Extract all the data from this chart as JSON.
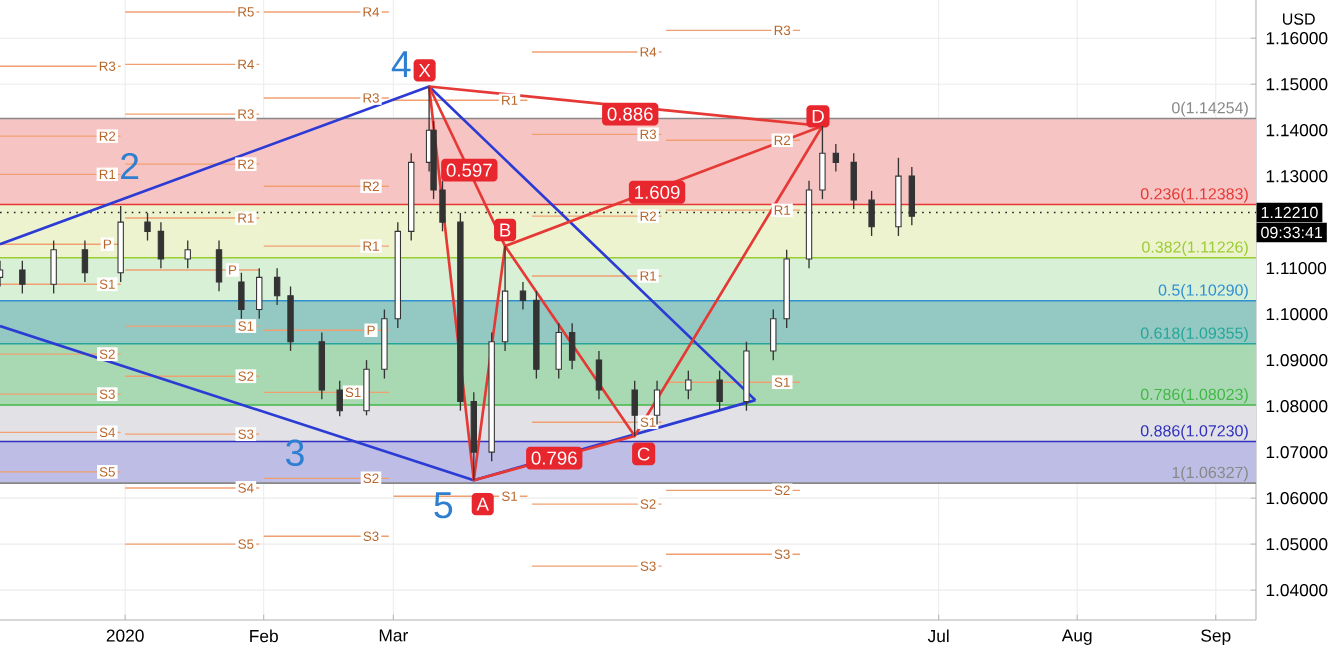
{
  "chart_data": {
    "type": "candlestick",
    "color": "#333333",
    "ylabel": "USD",
    "grid": true,
    "xlim": [
      "2019-12-04",
      "2020-09-10"
    ],
    "ylim": [
      1.0335,
      1.1683
    ],
    "xticks": [
      {
        "value": "2020-01-01",
        "label": "2020"
      },
      {
        "value": "2020-02-01",
        "label": "Feb"
      },
      {
        "value": "2020-03-01",
        "label": "Mar"
      },
      {
        "value": "2020-07-01",
        "label": "Jul"
      },
      {
        "value": "2020-08-01",
        "label": "Aug"
      },
      {
        "value": "2020-09-01",
        "label": "Sep"
      }
    ],
    "yticks": [
      {
        "value": 1.04,
        "label": "1.04000"
      },
      {
        "value": 1.05,
        "label": "1.05000"
      },
      {
        "value": 1.06,
        "label": "1.06000"
      },
      {
        "value": 1.07,
        "label": "1.07000"
      },
      {
        "value": 1.08,
        "label": "1.08000"
      },
      {
        "value": 1.09,
        "label": "1.09000"
      },
      {
        "value": 1.1,
        "label": "1.10000"
      },
      {
        "value": 1.11,
        "label": "1.11000"
      },
      {
        "value": 1.12,
        "label": null
      },
      {
        "value": 1.13,
        "label": "1.13000"
      },
      {
        "value": 1.14,
        "label": "1.14000"
      },
      {
        "value": 1.15,
        "label": "1.15000"
      },
      {
        "value": 1.16,
        "label": "1.16000"
      }
    ],
    "x": [
      "2019-12-04",
      "2019-12-09",
      "2019-12-16",
      "2019-12-23",
      "2019-12-31",
      "2020-01-06",
      "2020-01-09",
      "2020-01-15",
      "2020-01-22",
      "2020-01-27",
      "2020-01-31",
      "2020-02-04",
      "2020-02-07",
      "2020-02-14",
      "2020-02-18",
      "2020-02-24",
      "2020-02-28",
      "2020-03-02",
      "2020-03-05",
      "2020-03-09",
      "2020-03-10",
      "2020-03-12",
      "2020-03-16",
      "2020-03-19",
      "2020-03-23",
      "2020-03-26",
      "2020-03-30",
      "2020-04-02",
      "2020-04-07",
      "2020-04-10",
      "2020-04-16",
      "2020-04-24",
      "2020-04-29",
      "2020-05-06",
      "2020-05-13",
      "2020-05-19",
      "2020-05-25",
      "2020-05-28",
      "2020-06-02",
      "2020-06-05",
      "2020-06-08",
      "2020-06-12",
      "2020-06-16",
      "2020-06-22",
      "2020-06-25"
    ],
    "ohlc": [
      [
        1.108,
        1.1116,
        1.106,
        1.1096
      ],
      [
        1.1096,
        1.1116,
        1.1045,
        1.1065
      ],
      [
        1.1065,
        1.116,
        1.1045,
        1.114
      ],
      [
        1.114,
        1.116,
        1.107,
        1.109
      ],
      [
        1.109,
        1.1235,
        1.107,
        1.12
      ],
      [
        1.12,
        1.122,
        1.116,
        1.118
      ],
      [
        1.118,
        1.12,
        1.11,
        1.112
      ],
      [
        1.112,
        1.116,
        1.11,
        1.114
      ],
      [
        1.114,
        1.116,
        1.105,
        1.107
      ],
      [
        1.107,
        1.109,
        1.099,
        1.101
      ],
      [
        1.101,
        1.11,
        1.099,
        1.108
      ],
      [
        1.108,
        1.11,
        1.102,
        1.104
      ],
      [
        1.104,
        1.106,
        1.092,
        1.094
      ],
      [
        1.094,
        1.096,
        1.0815,
        1.0835
      ],
      [
        1.0835,
        1.0855,
        1.0778,
        1.079
      ],
      [
        1.079,
        1.09,
        1.078,
        1.088
      ],
      [
        1.088,
        1.101,
        1.086,
        1.099
      ],
      [
        1.099,
        1.12,
        1.097,
        1.118
      ],
      [
        1.118,
        1.135,
        1.116,
        1.133
      ],
      [
        1.133,
        1.1495,
        1.131,
        1.14
      ],
      [
        1.14,
        1.142,
        1.125,
        1.127
      ],
      [
        1.127,
        1.129,
        1.118,
        1.12
      ],
      [
        1.12,
        1.122,
        1.079,
        1.081
      ],
      [
        1.081,
        1.083,
        1.0639,
        1.07
      ],
      [
        1.07,
        1.096,
        1.068,
        1.094
      ],
      [
        1.094,
        1.1148,
        1.092,
        1.105
      ],
      [
        1.105,
        1.107,
        1.101,
        1.103
      ],
      [
        1.103,
        1.105,
        1.086,
        1.088
      ],
      [
        1.088,
        1.098,
        1.086,
        1.096
      ],
      [
        1.096,
        1.098,
        1.088,
        1.09
      ],
      [
        1.09,
        1.092,
        1.0815,
        1.0835
      ],
      [
        1.0835,
        1.0855,
        1.0735,
        1.078
      ],
      [
        1.078,
        1.0855,
        1.076,
        1.0835
      ],
      [
        1.0835,
        1.0877,
        1.0815,
        1.0857
      ],
      [
        1.0857,
        1.0877,
        1.079,
        1.081
      ],
      [
        1.081,
        1.094,
        1.079,
        1.092
      ],
      [
        1.092,
        1.101,
        1.09,
        1.099
      ],
      [
        1.099,
        1.114,
        1.097,
        1.112
      ],
      [
        1.112,
        1.129,
        1.11,
        1.127
      ],
      [
        1.127,
        1.1409,
        1.125,
        1.135
      ],
      [
        1.135,
        1.137,
        1.131,
        1.133
      ],
      [
        1.133,
        1.135,
        1.1228,
        1.1248
      ],
      [
        1.1248,
        1.1268,
        1.117,
        1.119
      ],
      [
        1.119,
        1.134,
        1.117,
        1.13
      ],
      [
        1.13,
        1.132,
        1.1193,
        1.1213
      ]
    ],
    "bands": [
      {
        "axis": "y",
        "from": 1.12383,
        "to": 1.14254,
        "color": "#f7c4c4"
      },
      {
        "axis": "y",
        "from": 1.11226,
        "to": 1.12383,
        "color": "#eef3cf"
      },
      {
        "axis": "y",
        "from": 1.1029,
        "to": 1.11226,
        "color": "#d8f0d6"
      },
      {
        "axis": "y",
        "from": 1.09355,
        "to": 1.1029,
        "color": "#93c9c2"
      },
      {
        "axis": "y",
        "from": 1.08023,
        "to": 1.09355,
        "color": "#a9d9b2"
      },
      {
        "axis": "y",
        "from": 1.0723,
        "to": 1.08023,
        "color": "#e2e2e6"
      },
      {
        "axis": "y",
        "from": 1.06327,
        "to": 1.0723,
        "color": "#bdbde6"
      }
    ],
    "ref_lines": [
      {
        "axis": "y",
        "value": 1.14254,
        "label": "0(1.14254)",
        "color": "#888888"
      },
      {
        "axis": "y",
        "value": 1.12383,
        "label": "0.236(1.12383)",
        "color": "#e53935"
      },
      {
        "axis": "y",
        "value": 1.11226,
        "label": "0.382(1.11226)",
        "color": "#9acd32"
      },
      {
        "axis": "y",
        "value": 1.1029,
        "label": "0.5(1.10290)",
        "color": "#2f8fd0"
      },
      {
        "axis": "y",
        "value": 1.09355,
        "label": "0.618(1.09355)",
        "color": "#26a69a"
      },
      {
        "axis": "y",
        "value": 1.08023,
        "label": "0.786(1.08023)",
        "color": "#43b649"
      },
      {
        "axis": "y",
        "value": 1.0723,
        "label": "0.886(1.07230)",
        "color": "#3030c0"
      },
      {
        "axis": "y",
        "value": 1.06327,
        "label": "1(1.06327)",
        "color": "#888888"
      },
      {
        "axis": "y",
        "value": 1.1221,
        "label": "1.12210",
        "color": "#222222",
        "line_style": "dotted"
      }
    ],
    "series": [
      {
        "type": "line",
        "color": "#f0a070",
        "x": [
          "2019-12-04",
          "2019-12-31"
        ],
        "values": [
          1.1539,
          1.1539
        ]
      },
      {
        "type": "line",
        "color": "#f0a070",
        "x": [
          "2019-12-04",
          "2019-12-31"
        ],
        "values": [
          1.1387,
          1.1387
        ]
      },
      {
        "type": "line",
        "color": "#f0a070",
        "x": [
          "2019-12-04",
          "2019-12-31"
        ],
        "values": [
          1.1304,
          1.1304
        ]
      },
      {
        "type": "line",
        "color": "#f0a070",
        "x": [
          "2019-12-04",
          "2019-12-31"
        ],
        "values": [
          1.1152,
          1.1152
        ]
      },
      {
        "type": "line",
        "color": "#f0a070",
        "x": [
          "2019-12-04",
          "2019-12-31"
        ],
        "values": [
          1.1065,
          1.1065
        ]
      },
      {
        "type": "line",
        "color": "#f0a070",
        "x": [
          "2019-12-04",
          "2019-12-31"
        ],
        "values": [
          1.0913,
          1.0913
        ]
      },
      {
        "type": "line",
        "color": "#f0a070",
        "x": [
          "2019-12-04",
          "2019-12-31"
        ],
        "values": [
          1.0826,
          1.0826
        ]
      },
      {
        "type": "line",
        "color": "#f0a070",
        "x": [
          "2019-12-04",
          "2019-12-31"
        ],
        "values": [
          1.0743,
          1.0743
        ]
      },
      {
        "type": "line",
        "color": "#f0a070",
        "x": [
          "2019-12-04",
          "2019-12-31"
        ],
        "values": [
          1.0657,
          1.0657
        ]
      },
      {
        "type": "line",
        "color": "#f0a070",
        "x": [
          "2020-01-01",
          "2020-01-31"
        ],
        "values": [
          1.1657,
          1.1657
        ]
      },
      {
        "type": "line",
        "color": "#f0a070",
        "x": [
          "2020-01-01",
          "2020-01-31"
        ],
        "values": [
          1.1543,
          1.1543
        ]
      },
      {
        "type": "line",
        "color": "#f0a070",
        "x": [
          "2020-01-01",
          "2020-01-31"
        ],
        "values": [
          1.1435,
          1.1435
        ]
      },
      {
        "type": "line",
        "color": "#f0a070",
        "x": [
          "2020-01-01",
          "2020-01-31"
        ],
        "values": [
          1.1326,
          1.1326
        ]
      },
      {
        "type": "line",
        "color": "#f0a070",
        "x": [
          "2020-01-01",
          "2020-01-31"
        ],
        "values": [
          1.1209,
          1.1209
        ]
      },
      {
        "type": "line",
        "color": "#f0a070",
        "x": [
          "2020-01-01",
          "2020-01-31"
        ],
        "values": [
          1.1096,
          1.1096
        ]
      },
      {
        "type": "line",
        "color": "#f0a070",
        "x": [
          "2020-01-01",
          "2020-01-31"
        ],
        "values": [
          1.0974,
          1.0974
        ]
      },
      {
        "type": "line",
        "color": "#f0a070",
        "x": [
          "2020-01-01",
          "2020-01-31"
        ],
        "values": [
          1.0865,
          1.0865
        ]
      },
      {
        "type": "line",
        "color": "#f0a070",
        "x": [
          "2020-01-01",
          "2020-01-31"
        ],
        "values": [
          1.0739,
          1.0739
        ]
      },
      {
        "type": "line",
        "color": "#f0a070",
        "x": [
          "2020-01-01",
          "2020-01-31"
        ],
        "values": [
          1.0622,
          1.0622
        ]
      },
      {
        "type": "line",
        "color": "#f0a070",
        "x": [
          "2020-01-01",
          "2020-01-31"
        ],
        "values": [
          1.05,
          1.05
        ]
      },
      {
        "type": "line",
        "color": "#f0a070",
        "x": [
          "2020-02-01",
          "2020-02-29"
        ],
        "values": [
          1.1657,
          1.1657
        ]
      },
      {
        "type": "line",
        "color": "#f0a070",
        "x": [
          "2020-02-01",
          "2020-02-29"
        ],
        "values": [
          1.147,
          1.147
        ]
      },
      {
        "type": "line",
        "color": "#f0a070",
        "x": [
          "2020-02-01",
          "2020-02-29"
        ],
        "values": [
          1.1278,
          1.1278
        ]
      },
      {
        "type": "line",
        "color": "#f0a070",
        "x": [
          "2020-02-01",
          "2020-02-29"
        ],
        "values": [
          1.1148,
          1.1148
        ]
      },
      {
        "type": "line",
        "color": "#f0a070",
        "x": [
          "2020-02-01",
          "2020-02-29"
        ],
        "values": [
          1.0965,
          1.0965
        ]
      },
      {
        "type": "line",
        "color": "#f0a070",
        "x": [
          "2020-02-01",
          "2020-02-29"
        ],
        "values": [
          1.083,
          1.083
        ]
      },
      {
        "type": "line",
        "color": "#f0a070",
        "x": [
          "2020-02-01",
          "2020-02-29"
        ],
        "values": [
          1.0643,
          1.0643
        ]
      },
      {
        "type": "line",
        "color": "#f0a070",
        "x": [
          "2020-02-01",
          "2020-02-29"
        ],
        "values": [
          1.0517,
          1.0517
        ]
      },
      {
        "type": "line",
        "color": "#f0a070",
        "x": [
          "2020-03-01",
          "2020-03-31"
        ],
        "values": [
          1.1465,
          1.1465
        ]
      },
      {
        "type": "line",
        "color": "#f0a070",
        "x": [
          "2020-03-01",
          "2020-03-31"
        ],
        "values": [
          1.0604,
          1.0604
        ]
      },
      {
        "type": "line",
        "color": "#f0a070",
        "x": [
          "2020-04-01",
          "2020-04-30"
        ],
        "values": [
          1.157,
          1.157
        ]
      },
      {
        "type": "line",
        "color": "#f0a070",
        "x": [
          "2020-04-01",
          "2020-04-30"
        ],
        "values": [
          1.1391,
          1.1391
        ]
      },
      {
        "type": "line",
        "color": "#f0a070",
        "x": [
          "2020-04-01",
          "2020-04-30"
        ],
        "values": [
          1.1213,
          1.1213
        ]
      },
      {
        "type": "line",
        "color": "#f0a070",
        "x": [
          "2020-04-01",
          "2020-04-30"
        ],
        "values": [
          1.1083,
          1.1083
        ]
      },
      {
        "type": "line",
        "color": "#f0a070",
        "x": [
          "2020-04-01",
          "2020-04-30"
        ],
        "values": [
          1.0765,
          1.0765
        ]
      },
      {
        "type": "line",
        "color": "#f0a070",
        "x": [
          "2020-04-01",
          "2020-04-30"
        ],
        "values": [
          1.0587,
          1.0587
        ]
      },
      {
        "type": "line",
        "color": "#f0a070",
        "x": [
          "2020-04-01",
          "2020-04-30"
        ],
        "values": [
          1.0452,
          1.0452
        ]
      },
      {
        "type": "line",
        "color": "#f0a070",
        "x": [
          "2020-05-01",
          "2020-05-31"
        ],
        "values": [
          1.1617,
          1.1617
        ]
      },
      {
        "type": "line",
        "color": "#f0a070",
        "x": [
          "2020-05-01",
          "2020-05-31"
        ],
        "values": [
          1.1378,
          1.1378
        ]
      },
      {
        "type": "line",
        "color": "#f0a070",
        "x": [
          "2020-05-01",
          "2020-05-31"
        ],
        "values": [
          1.1226,
          1.1226
        ]
      },
      {
        "type": "line",
        "color": "#f0a070",
        "x": [
          "2020-05-01",
          "2020-05-31"
        ],
        "values": [
          1.0852,
          1.0852
        ]
      },
      {
        "type": "line",
        "color": "#f0a070",
        "x": [
          "2020-05-01",
          "2020-05-31"
        ],
        "values": [
          1.0617,
          1.0617
        ]
      },
      {
        "type": "line",
        "color": "#f0a070",
        "x": [
          "2020-05-01",
          "2020-05-31"
        ],
        "values": [
          1.0478,
          1.0478
        ]
      },
      {
        "type": "line",
        "color": "#2b3bd4",
        "x": [
          "2019-12-04",
          "2020-03-09",
          "2020-05-21"
        ],
        "values": [
          1.1152,
          1.1495,
          1.0813
        ]
      },
      {
        "type": "line",
        "color": "#2b3bd4",
        "x": [
          "2019-12-04",
          "2020-03-19",
          "2020-05-21"
        ],
        "values": [
          1.0974,
          1.0639,
          1.0813
        ]
      },
      {
        "type": "line",
        "color": "#e53935",
        "x": [
          "2020-03-09",
          "2020-03-19",
          "2020-03-26",
          "2020-04-24",
          "2020-06-05"
        ],
        "values": [
          1.1495,
          1.0639,
          1.1148,
          1.0735,
          1.1409
        ]
      },
      {
        "type": "line",
        "color": "#e53935",
        "x": [
          "2020-03-09",
          "2020-03-26",
          "2020-06-05"
        ],
        "values": [
          1.1495,
          1.1148,
          1.1409
        ]
      },
      {
        "type": "line",
        "color": "#e53935",
        "x": [
          "2020-03-09",
          "2020-06-05"
        ],
        "values": [
          1.1495,
          1.1409
        ]
      },
      {
        "type": "line",
        "color": "#e53935",
        "x": [
          "2020-03-19",
          "2020-04-24"
        ],
        "values": [
          1.0639,
          1.0735
        ]
      }
    ],
    "annotations": [
      {
        "text": "2",
        "x": "2020-01-02",
        "y": 1.1256
      },
      {
        "text": "3",
        "x": "2020-02-08",
        "y": 1.0765
      },
      {
        "text": "4",
        "x": "2020-03-09",
        "y": 1.1495
      },
      {
        "text": "5",
        "x": "2020-03-19",
        "y": 1.0639
      },
      {
        "text": "X",
        "x": "2020-03-08",
        "y": 1.153
      },
      {
        "text": "A",
        "x": "2020-03-21",
        "y": 1.0587
      },
      {
        "text": "B",
        "x": "2020-03-26",
        "y": 1.1183
      },
      {
        "text": "C",
        "x": "2020-04-26",
        "y": 1.0696
      },
      {
        "text": "D",
        "x": "2020-06-04",
        "y": 1.143
      },
      {
        "text": "0.886",
        "x": "2020-04-23",
        "y": 1.1435
      },
      {
        "text": "0.597",
        "x": "2020-03-18",
        "y": 1.1313
      },
      {
        "text": "1.609",
        "x": "2020-04-29",
        "y": 1.1265
      },
      {
        "text": "0.796",
        "x": "2020-04-06",
        "y": 1.0687
      },
      "09:33:41",
      {
        "text": "R3",
        "x": "2019-12-28",
        "y": 1.1539
      },
      {
        "text": "R2",
        "x": "2019-12-28",
        "y": 1.1387
      },
      {
        "text": "R1",
        "x": "2019-12-28",
        "y": 1.1304
      },
      {
        "text": "P",
        "x": "2019-12-28",
        "y": 1.1152
      },
      {
        "text": "S1",
        "x": "2019-12-28",
        "y": 1.1065
      },
      {
        "text": "S2",
        "x": "2019-12-28",
        "y": 1.0913
      },
      {
        "text": "S3",
        "x": "2019-12-28",
        "y": 1.0826
      },
      {
        "text": "S4",
        "x": "2019-12-28",
        "y": 1.0743
      },
      {
        "text": "S5",
        "x": "2019-12-28",
        "y": 1.0657
      },
      {
        "text": "R5",
        "x": "2020-01-28",
        "y": 1.1657
      },
      {
        "text": "R4",
        "x": "2020-01-28",
        "y": 1.1543
      },
      {
        "text": "R3",
        "x": "2020-01-28",
        "y": 1.1435
      },
      {
        "text": "R2",
        "x": "2020-01-28",
        "y": 1.1326
      },
      {
        "text": "R1",
        "x": "2020-01-28",
        "y": 1.1209
      },
      {
        "text": "P",
        "x": "2020-01-25",
        "y": 1.1096
      },
      {
        "text": "S1",
        "x": "2020-01-28",
        "y": 1.0974
      },
      {
        "text": "S2",
        "x": "2020-01-28",
        "y": 1.0865
      },
      {
        "text": "S3",
        "x": "2020-01-28",
        "y": 1.0739
      },
      {
        "text": "S4",
        "x": "2020-01-28",
        "y": 1.0622
      },
      {
        "text": "S5",
        "x": "2020-01-28",
        "y": 1.05
      },
      {
        "text": "R4",
        "x": "2020-02-25",
        "y": 1.1657
      },
      {
        "text": "R3",
        "x": "2020-02-25",
        "y": 1.147
      },
      {
        "text": "R2",
        "x": "2020-02-25",
        "y": 1.1278
      },
      {
        "text": "R1",
        "x": "2020-02-25",
        "y": 1.1148
      },
      {
        "text": "P",
        "x": "2020-02-25",
        "y": 1.0965
      },
      {
        "text": "S1",
        "x": "2020-02-21",
        "y": 1.083
      },
      {
        "text": "S2",
        "x": "2020-02-25",
        "y": 1.0643
      },
      {
        "text": "S3",
        "x": "2020-02-25",
        "y": 1.0517
      },
      {
        "text": "R1",
        "x": "2020-03-27",
        "y": 1.1465
      },
      {
        "text": "S1",
        "x": "2020-03-27",
        "y": 1.0604
      },
      {
        "text": "R4",
        "x": "2020-04-27",
        "y": 1.157
      },
      {
        "text": "R3",
        "x": "2020-04-27",
        "y": 1.1391
      },
      {
        "text": "R2",
        "x": "2020-04-27",
        "y": 1.1213
      },
      {
        "text": "R1",
        "x": "2020-04-27",
        "y": 1.1083
      },
      {
        "text": "S1",
        "x": "2020-04-27",
        "y": 1.0765
      },
      {
        "text": "S2",
        "x": "2020-04-27",
        "y": 1.0587
      },
      {
        "text": "S3",
        "x": "2020-04-27",
        "y": 1.0452
      },
      {
        "text": "R3",
        "x": "2020-05-27",
        "y": 1.1617
      },
      {
        "text": "R2",
        "x": "2020-05-27",
        "y": 1.1378
      },
      {
        "text": "R1",
        "x": "2020-05-27",
        "y": 1.1226
      },
      {
        "text": "S1",
        "x": "2020-05-27",
        "y": 1.0852
      },
      {
        "text": "S2",
        "x": "2020-05-27",
        "y": 1.0617
      },
      {
        "text": "S3",
        "x": "2020-05-27",
        "y": 1.0478
      }
    ]
  }
}
